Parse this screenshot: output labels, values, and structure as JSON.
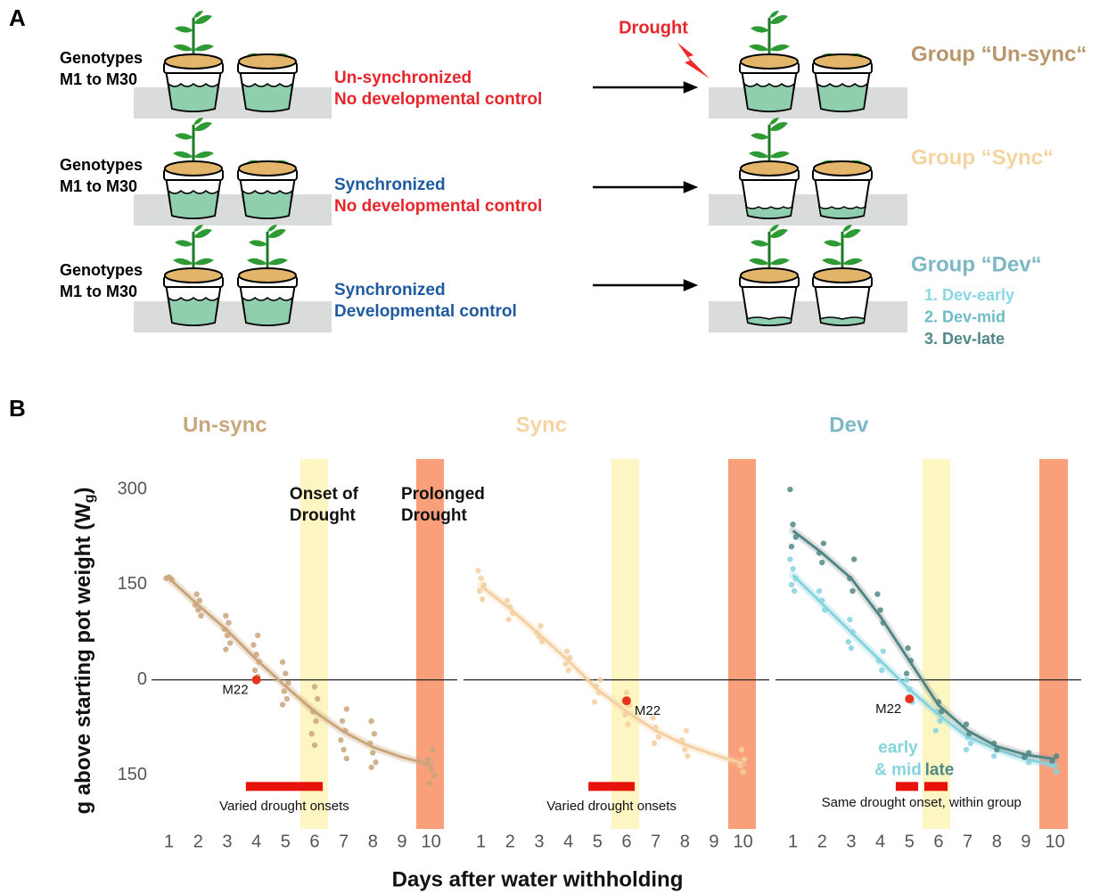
{
  "panel_a": {
    "label": "A",
    "rows": [
      {
        "genotypes": [
          "Genotypes",
          "M1 to M30"
        ],
        "conditions": [
          "Un-synchronized",
          "No developmental control"
        ],
        "group": "Group “Un-sync“"
      },
      {
        "genotypes": [
          "Genotypes",
          "M1 to M30"
        ],
        "conditions": [
          "Synchronized",
          "No developmental control"
        ],
        "group": "Group “Sync“"
      },
      {
        "genotypes": [
          "Genotypes",
          "M1 to M30"
        ],
        "conditions": [
          "Synchronized",
          "Developmental control"
        ],
        "group": "Group “Dev“"
      }
    ],
    "drought": "Drought",
    "dev_list": [
      "1. Dev-early",
      "2. Dev-mid",
      "3. Dev-late"
    ]
  },
  "panel_b": {
    "label": "B",
    "y_label": [
      "g above starting pot weight (W",
      "g",
      ")"
    ],
    "x_label": "Days after water withholding"
  },
  "chart_data": [
    {
      "type": "scatter",
      "title": "Un-sync",
      "title_color": "#c9a77c",
      "xlim": [
        0.4,
        10.9
      ],
      "ylim": [
        -235,
        348
      ],
      "xticks": [
        1,
        2,
        3,
        4,
        5,
        6,
        7,
        8,
        9,
        10
      ],
      "yticks": [
        300,
        150,
        0,
        {
          "value": -150,
          "label": "150"
        }
      ],
      "hline": 0,
      "bands": [
        {
          "from": 5.51,
          "to": 6.46,
          "color": "#fdf6c2"
        },
        {
          "from": 9.49,
          "to": 10.44,
          "color": "#f9a07b"
        }
      ],
      "annotations": [
        [
          "Onset of",
          "Drought"
        ],
        [
          "Prolonged",
          "Drought"
        ]
      ],
      "onset_bars": [
        {
          "from": 3.64,
          "to": 6.28,
          "y": -168
        }
      ],
      "onset_label": "Varied drought onsets",
      "highlight": {
        "label": "M22",
        "x": 4,
        "y": 0,
        "color": "#e8341c"
      },
      "series": [
        {
          "color": "#c9a57a",
          "x": [
            1,
            1,
            1,
            2,
            2,
            2,
            2,
            2,
            3,
            3,
            3,
            3,
            3,
            3,
            4,
            4,
            4,
            4,
            4,
            4,
            5,
            5,
            5,
            5,
            5,
            5,
            6,
            6,
            6,
            6,
            6,
            6,
            7,
            7,
            7,
            7,
            7,
            7,
            8,
            8,
            8,
            8,
            8,
            8,
            10,
            10,
            10,
            10,
            10
          ],
          "y": [
            160,
            162,
            158,
            135,
            125,
            118,
            110,
            101,
            101,
            90,
            80,
            70,
            58,
            48,
            70,
            55,
            40,
            28,
            15,
            5,
            28,
            10,
            -5,
            -18,
            -30,
            -39,
            -11,
            -30,
            -50,
            -65,
            -85,
            -103,
            -46,
            -65,
            -80,
            -95,
            -110,
            -124,
            -65,
            -85,
            -100,
            -115,
            -130,
            -138,
            -110,
            -125,
            -140,
            -150,
            -163
          ],
          "trend_x": [
            1,
            2,
            3,
            4,
            5,
            6,
            7,
            8,
            9,
            10
          ],
          "trend_y": [
            160,
            118,
            78,
            32,
            -10,
            -50,
            -82,
            -106,
            -122,
            -134
          ]
        }
      ]
    },
    {
      "type": "scatter",
      "title": "Sync",
      "title_color": "#f5d3a2",
      "xlim": [
        0.4,
        10.9
      ],
      "ylim": [
        -235,
        348
      ],
      "xticks": [
        1,
        2,
        3,
        4,
        5,
        6,
        7,
        8,
        9,
        10
      ],
      "hline": 0,
      "bands": [
        {
          "from": 5.48,
          "to": 6.43,
          "color": "#fdf6c2"
        },
        {
          "from": 9.49,
          "to": 10.44,
          "color": "#f9a07b"
        }
      ],
      "onset_bars": [
        {
          "from": 4.69,
          "to": 6.28,
          "y": -168
        }
      ],
      "onset_label": "Varied drought onsets",
      "highlight": {
        "label": "M22",
        "x": 6,
        "y": -33,
        "color": "#e8341c"
      },
      "series": [
        {
          "color": "#f4cf9f",
          "x": [
            1,
            1,
            1,
            1,
            1,
            2,
            2,
            2,
            2,
            3,
            3,
            3,
            3,
            4,
            4,
            4,
            4,
            5,
            5,
            5,
            5,
            6,
            6,
            6,
            6,
            7,
            7,
            7,
            7,
            8,
            8,
            8,
            8,
            10,
            10,
            10,
            10
          ],
          "y": [
            172,
            160,
            150,
            140,
            127,
            125,
            115,
            105,
            95,
            85,
            75,
            68,
            60,
            45,
            35,
            25,
            15,
            0,
            -10,
            -20,
            -35,
            -20,
            -40,
            -55,
            -70,
            -60,
            -75,
            -90,
            -100,
            -80,
            -95,
            -110,
            -120,
            -110,
            -125,
            -135,
            -145
          ],
          "trend_x": [
            1,
            2,
            3,
            4,
            5,
            6,
            7,
            8,
            9,
            10
          ],
          "trend_y": [
            148,
            112,
            72,
            30,
            -15,
            -50,
            -80,
            -102,
            -118,
            -132
          ]
        }
      ]
    },
    {
      "type": "scatter",
      "title": "Dev",
      "title_color": "#7ab8c4",
      "xlim": [
        0.4,
        10.9
      ],
      "ylim": [
        -235,
        348
      ],
      "xticks": [
        1,
        2,
        3,
        4,
        5,
        6,
        7,
        8,
        9,
        10
      ],
      "hline": 0,
      "bands": [
        {
          "from": 5.45,
          "to": 6.4,
          "color": "#fdf6c2"
        },
        {
          "from": 9.46,
          "to": 10.44,
          "color": "#f9a07b"
        }
      ],
      "onset_bars": [
        {
          "from": 4.53,
          "to": 5.3,
          "y": -168
        },
        {
          "from": 5.51,
          "to": 6.31,
          "y": -168
        }
      ],
      "onset_label": "Same drought onset, within group",
      "highlight": {
        "label": "M22",
        "x": 5,
        "y": -30,
        "color": "#e8341c"
      },
      "series": [
        {
          "label": [
            "early",
            "& mid"
          ],
          "color": "#86d3de",
          "x": [
            1,
            1,
            1,
            1,
            1,
            2,
            2,
            2,
            3,
            3,
            3,
            3,
            4,
            4,
            4,
            5,
            5,
            5,
            6,
            6,
            6,
            7,
            7,
            7,
            8,
            8,
            9,
            9,
            10,
            10
          ],
          "y": [
            190,
            175,
            160,
            150,
            140,
            140,
            125,
            110,
            95,
            75,
            60,
            50,
            45,
            30,
            15,
            0,
            -15,
            -35,
            -50,
            -65,
            -80,
            -90,
            -100,
            -110,
            -110,
            -120,
            -120,
            -130,
            -135,
            -145
          ],
          "trend_x": [
            1,
            2,
            3,
            4,
            5,
            6,
            7,
            8,
            9,
            10
          ],
          "trend_y": [
            165,
            120,
            75,
            30,
            -15,
            -55,
            -90,
            -110,
            -125,
            -135
          ]
        },
        {
          "label": [
            "late"
          ],
          "color": "#4f8886",
          "x": [
            1,
            1,
            1,
            1,
            2,
            2,
            2,
            3,
            3,
            3,
            4,
            4,
            4,
            5,
            5,
            5,
            6,
            6,
            7,
            7,
            8,
            8,
            9,
            9,
            10,
            10
          ],
          "y": [
            300,
            245,
            225,
            210,
            215,
            200,
            185,
            190,
            160,
            140,
            135,
            110,
            90,
            50,
            30,
            10,
            -35,
            -50,
            -70,
            -85,
            -100,
            -110,
            -115,
            -122,
            -120,
            -128
          ],
          "trend_x": [
            1,
            2,
            3,
            4,
            5,
            6,
            7,
            8,
            9,
            10
          ],
          "trend_y": [
            235,
            200,
            160,
            100,
            30,
            -40,
            -80,
            -105,
            -118,
            -125
          ]
        }
      ]
    }
  ]
}
